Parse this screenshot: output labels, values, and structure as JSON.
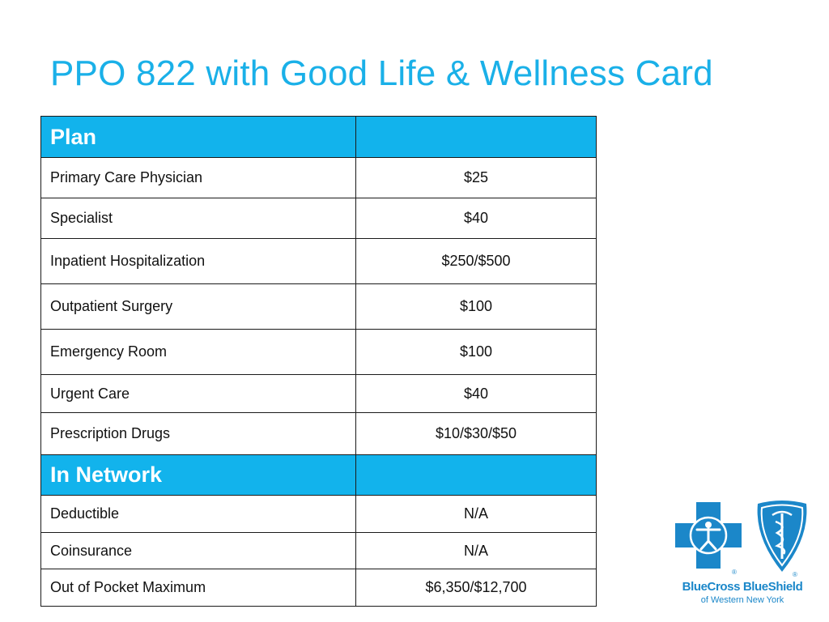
{
  "title": "PPO 822 with Good Life & Wellness Card",
  "table": {
    "sections": [
      {
        "header": "Plan",
        "rows": [
          {
            "label": "Primary Care Physician",
            "value": "$25"
          },
          {
            "label": "Specialist",
            "value": "$40"
          },
          {
            "label": "Inpatient Hospitalization",
            "value": "$250/$500"
          },
          {
            "label": "Outpatient Surgery",
            "value": "$100"
          },
          {
            "label": "Emergency Room",
            "value": "$100"
          },
          {
            "label": "Urgent Care",
            "value": "$40"
          },
          {
            "label": "Prescription Drugs",
            "value": "$10/$30/$50"
          }
        ]
      },
      {
        "header": "In Network",
        "rows": [
          {
            "label": "Deductible",
            "value": "N/A"
          },
          {
            "label": "Coinsurance",
            "value": "N/A"
          },
          {
            "label": "Out of Pocket Maximum",
            "value": "$6,350/$12,700"
          }
        ]
      }
    ]
  },
  "logo": {
    "name": "BlueCross BlueShield",
    "subtitle": "of Western New York",
    "registered_mark": "®",
    "icons": [
      "blue-cross-icon",
      "blue-shield-icon"
    ]
  },
  "colors": {
    "title": "#1ab0e8",
    "header_fill": "#12b3ec",
    "logo_blue": "#1b87c9"
  }
}
